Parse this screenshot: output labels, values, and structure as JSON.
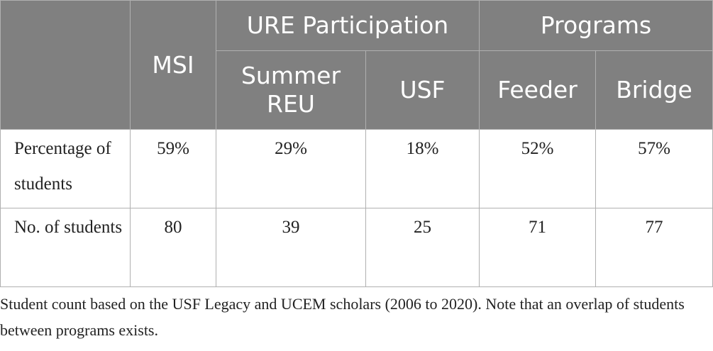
{
  "table": {
    "header": {
      "msi": "MSI",
      "ure_participation": "URE Participation",
      "programs": "Programs",
      "summer_reu": "Summer REU",
      "usf": "USF",
      "feeder": "Feeder",
      "bridge": "Bridge"
    },
    "rows": [
      {
        "label": "Percentage of students",
        "values": [
          "59%",
          "29%",
          "18%",
          "52%",
          "57%"
        ]
      },
      {
        "label": "No. of students",
        "values": [
          "80",
          "39",
          "25",
          "71",
          "77"
        ]
      }
    ]
  },
  "footnote": "Student count based on the USF Legacy and UCEM scholars (2006 to 2020). Note that an overlap of students between programs exists."
}
